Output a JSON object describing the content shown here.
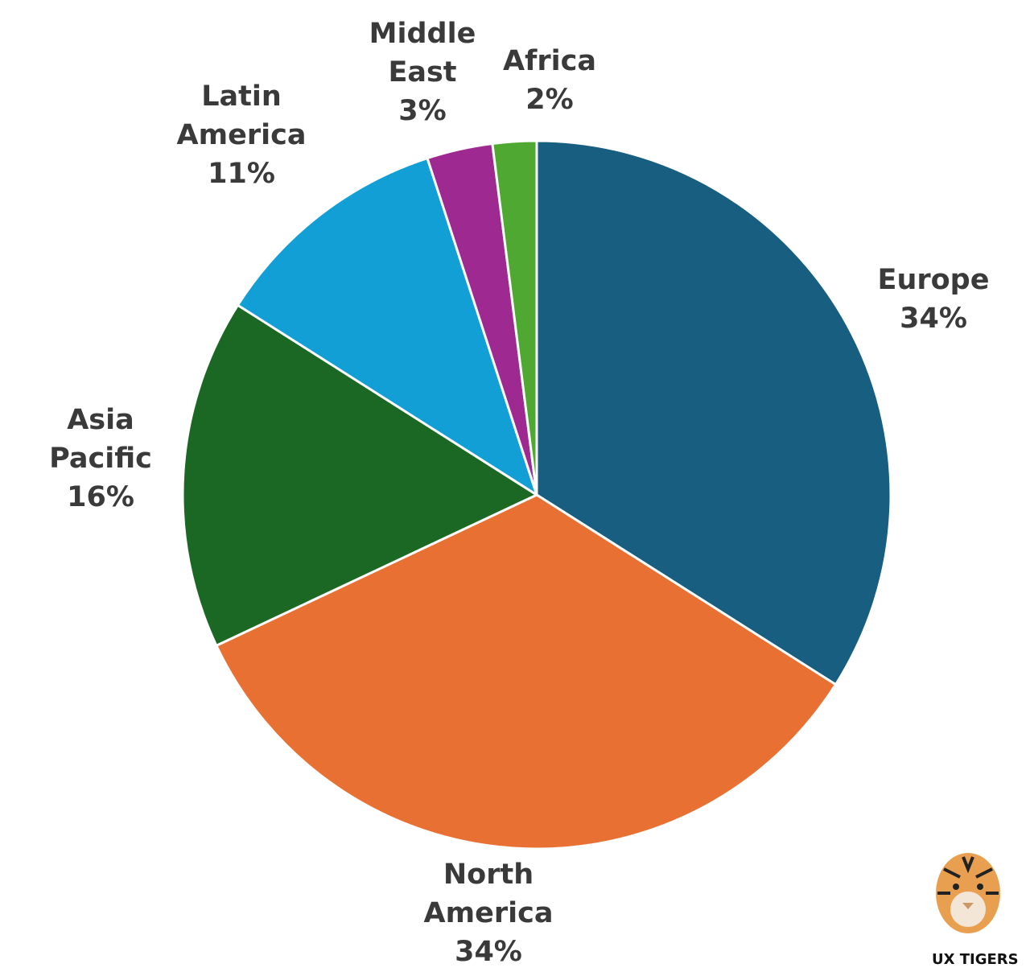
{
  "chart_data": {
    "type": "pie",
    "categories": [
      "Europe",
      "North America",
      "Asia Pacific",
      "Latin America",
      "Middle East",
      "Africa"
    ],
    "values": [
      34,
      34,
      16,
      11,
      3,
      2
    ],
    "value_labels": [
      "34%",
      "34%",
      "16%",
      "11%",
      "3%",
      "2%"
    ],
    "colors": [
      "#175e80",
      "#e97033",
      "#1b6824",
      "#119fd6",
      "#9e2a91",
      "#4ea832"
    ]
  },
  "watermark": "UX TIGERS"
}
